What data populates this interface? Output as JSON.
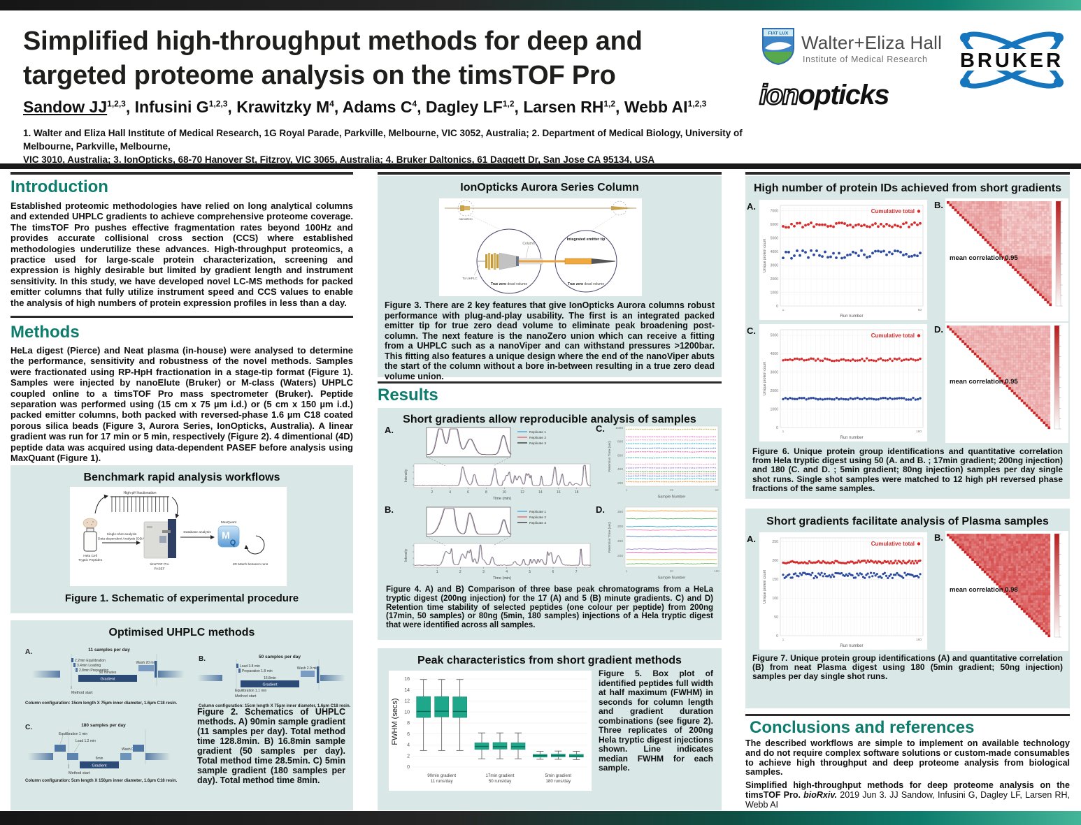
{
  "colors": {
    "accent_teal": "#0e7c6d",
    "panel_bg": "#d9e8e6",
    "bar_dark": "#1a1a1a",
    "red": "#d62b2b",
    "blue": "#2c4b9e",
    "box_teal": "#1fa78c"
  },
  "header": {
    "title_line1": "Simplified high-throughput methods for deep and",
    "title_line2": "targeted proteome analysis on the timsTOF Pro",
    "authors": [
      {
        "name": "Sandow JJ",
        "sup": "1,2,3",
        "underline": true
      },
      {
        "name": "Infusini G",
        "sup": "1,2,3"
      },
      {
        "name": "Krawitzky M",
        "sup": "4"
      },
      {
        "name": "Adams C",
        "sup": "4"
      },
      {
        "name": "Dagley LF",
        "sup": "1,2"
      },
      {
        "name": "Larsen RH",
        "sup": "1,2"
      },
      {
        "name": "Webb AI",
        "sup": "1,2,3"
      }
    ],
    "affiliations_line1": "1. Walter and Eliza Hall Institute of Medical Research, 1G Royal Parade, Parkville, Melbourne, VIC 3052, Australia; 2. Department of Medical Biology, University of Melbourne, Parkville, Melbourne,",
    "affiliations_line2": "VIC 3010, Australia; 3. IonOpticks, 68-70 Hanover St, Fitzroy, VIC 3065, Australia; 4. Bruker Daltonics, 61 Daggett Dr, San Jose CA 95134, USA",
    "logos": {
      "weh_shield": "FIAT LUX",
      "weh_line1": "Walter+Eliza Hall",
      "weh_line2": "Institute of Medical Research",
      "ionopticks_ion": "ion",
      "ionopticks_opticks": "opticks",
      "bruker": "BRUKER"
    }
  },
  "sections": {
    "introduction": {
      "heading": "Introduction",
      "body": "Established proteomic methodologies have relied on long analytical columns and extended UHPLC gradients to achieve comprehensive proteome coverage. The timsTOF Pro pushes effective fragmentation rates beyond 100Hz and provides accurate collisional cross section (CCS) where established methodologies underutilize these advances. High-throughput proteomics, a practice used for large-scale protein characterization, screening and expression is highly desirable but limited by gradient length and instrument sensitivity. In this study, we have developed novel LC-MS methods for packed emitter columns that fully utilize instrument speed and CCS values to enable the analysis of high numbers of protein expression profiles in less than a day."
    },
    "methods": {
      "heading": "Methods",
      "body": "HeLa digest (Pierce) and Neat plasma (in-house) were analysed to determine the performance, sensitivity and robustness of the novel methods. Samples were fractionated using RP-HpH fractionation in a stage-tip format (Figure 1). Samples were injected by nanoElute (Bruker) or M-class (Waters) UHPLC coupled online to a timsTOF Pro mass spectrometer (Bruker). Peptide separation was performed using (15 cm x 75 µm i.d.) or (5 cm x 150 µm i.d.) packed emitter columns, both packed with reversed-phase 1.6 µm C18 coated porous silica beads (Figure 3, Aurora Series, IonOpticks, Australia). A linear gradient was run for 17 min or 5 min, respectively (Figure 2). 4 dimentional (4D) peptide data was acquired using data-dependent PASEF before analysis using MaxQuant (Figure 1)."
    },
    "results_heading": "Results",
    "conclusions": {
      "heading": "Conclusions and references",
      "body": "The described workflows are simple to implement on available technology and do not require complex software solutions or custom-made consumables to achieve high throughput and deep proteome analysis from biological samples.",
      "ref_bold": "Simplified high-throughput methods for deep proteome analysis on the timsTOF Pro. ",
      "ref_italic": "bioRxiv.",
      "ref_rest": " 2019 Jun 3. JJ Sandow, Infusini G, Dagley LF, Larsen RH, Webb AI"
    }
  },
  "figure1": {
    "panel_title": "Benchmark rapid analysis workflows",
    "labels": {
      "fractionation": "High-pH fractionation",
      "sample1": "Hela Cell",
      "sample2": "Tryptic Peptides",
      "analysis1": "Single-shot analysis",
      "analysis2": "Data-dependent Analysis (DDA)",
      "instrument1": "timsTOF Pro",
      "instrument2": "PASEF",
      "db": "Database analysis",
      "mq": "MaxQuant",
      "match": "4D Match between runs"
    },
    "caption": "Figure 1. Schematic of experimental procedure"
  },
  "figure2": {
    "panel_title": "Optimised UHPLC methods",
    "a": {
      "letter": "A.",
      "title": "11 samples per day",
      "labels": [
        "2.2min Equilibration",
        "3.4min Loading",
        "2.8min Preparation",
        "90 minutes",
        "Gradient",
        "Wash 20 min",
        "Method start"
      ],
      "config": "Column configuration: 15cm length X 75µm inner diameter, 1.6µm C18 resin."
    },
    "b": {
      "letter": "B.",
      "title": "50 samples per day",
      "labels": [
        "Load 3.8 min",
        "Preparation 1.8 min",
        "16.8min",
        "Gradient",
        "Wash 2.9 min",
        "Equilibration 1.1 min",
        "Method start"
      ],
      "config": "Column configuration: 15cm length X 75µm inner diameter, 1.6µm C18 resin."
    },
    "c": {
      "letter": "C.",
      "title": "180 samples per day",
      "labels": [
        "Equilibration 1 min",
        "Load 1.2 min",
        "Wash 0.8 min",
        "5min",
        "Gradient",
        "Method start"
      ],
      "config": "Column configuration: 5cm length X 150µm inner diameter, 1.6µm C18 resin."
    },
    "caption": "Figure 2. Schematics of UHPLC methods. A) 90min sample gradient (11 samples per day). Total method time 128.8min. B) 16.8min sample gradient (50 samples per day). Total method time 28.5min. C) 5min sample gradient (180 samples per day). Total method time 8min."
  },
  "figure3": {
    "panel_title": "IonOpticks Aurora Series Column",
    "labels": {
      "nanozero": "nanoZero",
      "column": "Column",
      "emitter": "Integrated emitter tip",
      "uhplc": "To UHPLC",
      "truezero": "True zero",
      "deadvol": " dead volume"
    },
    "caption": "Figure 3. There are 2 key features that give IonOpticks Aurora columns robust performance with plug-and-play usability. The first is an integrated packed emitter tip for true zero dead volume to eliminate peak broadening post-column. The next feature is the nanoZero union which can receive a fitting from a UHPLC such as a nanoViper and can withstand pressures >1200bar. This fitting also features a unique design where the end of the nanoViper abuts the start of the column without a bore in-between resulting in a true zero dead volume union."
  },
  "figure4": {
    "panel_title": "Short gradients allow reproducible analysis of samples",
    "letters": [
      "A.",
      "B.",
      "C.",
      "D."
    ],
    "legend": [
      "Replicate 1",
      "Replicate 2",
      "Replicate 3"
    ],
    "legend_colors": [
      "#4ea7dc",
      "#e2646e",
      "#3a3a3a"
    ],
    "a": {
      "type": "line",
      "xlabel": "Time (min)",
      "ylabel": "Intensity",
      "xticks": [
        2,
        4,
        6,
        8,
        10,
        12,
        14,
        16,
        18
      ],
      "xmax": 19.5
    },
    "b": {
      "type": "line",
      "xlabel": "Time (min)",
      "ylabel": "Intensity",
      "xticks": [
        1,
        2,
        3,
        4,
        5,
        6,
        7
      ],
      "xmax": 7.6
    },
    "c": {
      "type": "dotted-series",
      "xlabel": "Sample Number",
      "ylabel": "Retention Time (sec)",
      "ylim": [
        150,
        1020
      ],
      "yticks": [
        200,
        400,
        600,
        800,
        1000
      ],
      "xticks": [
        "1",
        "25",
        "50"
      ],
      "series": [
        {
          "y": 975,
          "color": "#b9bd54"
        },
        {
          "y": 865,
          "color": "#e377c2"
        },
        {
          "y": 820,
          "color": "#f2a0c5"
        },
        {
          "y": 765,
          "color": "#31b8c4"
        },
        {
          "y": 700,
          "color": "#4f81c2"
        },
        {
          "y": 648,
          "color": "#e06eb0"
        },
        {
          "y": 560,
          "color": "#3fae9a"
        },
        {
          "y": 470,
          "color": "#f0a3c5"
        },
        {
          "y": 415,
          "color": "#9b86d8"
        },
        {
          "y": 360,
          "color": "#57a455"
        },
        {
          "y": 330,
          "color": "#e58b92"
        },
        {
          "y": 298,
          "color": "#5b7fd0"
        },
        {
          "y": 256,
          "color": "#35b5cf"
        },
        {
          "y": 215,
          "color": "#f0a142"
        }
      ]
    },
    "d": {
      "type": "line-series",
      "xlabel": "Sample Number",
      "ylabel": "Retention Time (sec)",
      "ylim": [
        160,
        365
      ],
      "yticks": [
        200,
        250,
        300,
        350
      ],
      "xticks": [
        "1",
        "90",
        "180"
      ],
      "series": [
        {
          "y": 352,
          "color": "#f0a142"
        },
        {
          "y": 326,
          "color": "#56b06a"
        },
        {
          "y": 299,
          "color": "#41b8d8"
        },
        {
          "y": 287,
          "color": "#e584b5"
        },
        {
          "y": 265,
          "color": "#4f81c2"
        },
        {
          "y": 222,
          "color": "#9b86d8"
        },
        {
          "y": 210,
          "color": "#d557a8"
        },
        {
          "y": 186,
          "color": "#cfc04a"
        },
        {
          "y": 172,
          "color": "#6bbb5e"
        }
      ]
    },
    "caption": "Figure 4. A) and B) Comparison of three base peak chromatograms from a HeLa tryptic digest (200ng injection) for the 17 (A) and 5 (B) minute gradients. C) and D) Retention time stability of selected peptides (one colour per peptide) from 200ng (17min, 50 samples) or 80ng (5min, 180 samples) injections of a Hela tryptic digest that were identified across all samples."
  },
  "figure5": {
    "panel_title": "Peak characteristics from short gradient methods",
    "chart": {
      "type": "box",
      "ylabel": "FWHM (secs)",
      "ylim": [
        0,
        16.5
      ],
      "yticks": [
        0,
        2,
        4,
        6,
        8,
        10,
        12,
        14,
        16
      ],
      "box_color": "#1fa78c",
      "groups": [
        {
          "label1": "90min gradient",
          "label2": "11 runs/day",
          "boxes": [
            {
              "lo": 3.0,
              "q1": 9.0,
              "med": 10.1,
              "q3": 12.8,
              "hi": 15.9
            },
            {
              "lo": 3.0,
              "q1": 9.1,
              "med": 10.15,
              "q3": 12.8,
              "hi": 15.9
            },
            {
              "lo": 3.0,
              "q1": 9.0,
              "med": 10.1,
              "q3": 12.75,
              "hi": 15.9
            }
          ]
        },
        {
          "label1": "17min gradient",
          "label2": "50 runs/day",
          "boxes": [
            {
              "lo": 1.5,
              "q1": 3.2,
              "med": 3.75,
              "q3": 4.4,
              "hi": 6.2
            },
            {
              "lo": 1.5,
              "q1": 3.25,
              "med": 3.7,
              "q3": 4.45,
              "hi": 6.2
            },
            {
              "lo": 1.5,
              "q1": 3.2,
              "med": 3.7,
              "q3": 4.4,
              "hi": 6.2
            }
          ]
        },
        {
          "label1": "5min gradient",
          "label2": "180 runs/day",
          "boxes": [
            {
              "lo": 1.4,
              "q1": 1.8,
              "med": 2.05,
              "q3": 2.3,
              "hi": 2.85
            },
            {
              "lo": 1.4,
              "q1": 1.85,
              "med": 2.05,
              "q3": 2.35,
              "hi": 2.9
            },
            {
              "lo": 1.35,
              "q1": 1.8,
              "med": 2.0,
              "q3": 2.3,
              "hi": 2.85
            }
          ]
        }
      ]
    },
    "caption": "Figure 5.  Box plot of identified peptides full width at half maximum (FWHM) in seconds for column length and gradient duration combinations (see figure 2). Three replicates of 200ng Hela tryptic digest injections shown. Line indicates median FWHM for each sample."
  },
  "figure6": {
    "panel_title": "High number of protein IDs achieved from short gradients",
    "a": {
      "type": "scatter",
      "letter": "A.",
      "legend": "Cumulative total",
      "xlabel": "Run number",
      "ylabel": "Unique protein count",
      "yticks": [
        0,
        1000,
        2000,
        3000,
        4000,
        5000,
        6000,
        7000
      ],
      "ymax": 7400,
      "n": 50,
      "red_mean": 5950,
      "red_spread": 180,
      "blue_mean": 3780,
      "blue_spread": 300,
      "x_first": "1",
      "x_last": "50"
    },
    "b": {
      "type": "heatmap",
      "letter": "B.",
      "label": "mean correlation  0.95"
    },
    "c": {
      "type": "scatter",
      "letter": "C.",
      "legend": "Cumulative total",
      "xlabel": "Run number",
      "ylabel": "Unique protein count",
      "yticks": [
        0,
        1000,
        2000,
        3000,
        4000,
        5000
      ],
      "ymax": 5300,
      "n": 60,
      "red_mean": 3680,
      "red_spread": 75,
      "blue_mean": 1560,
      "blue_spread": 50,
      "x_first": "1",
      "x_last": "180"
    },
    "d": {
      "type": "heatmap",
      "letter": "D.",
      "label": "mean correlation  0.95"
    },
    "caption": "Figure 6. Unique protein group identifications and quantitative correlation from Hela tryptic digest using 50 (A. and B. ; 17min gradient; 200ng injection) and 180 (C. and D. ; 5min gradient; 80ng injection) samples per day single shot runs. Single shot samples were matched to 12 high pH reversed phase fractions of the same samples."
  },
  "figure7": {
    "panel_title": "Short gradients facilitate analysis of Plasma samples",
    "a": {
      "type": "scatter",
      "letter": "A.",
      "legend": "Cumulative total",
      "xlabel": "Run number",
      "ylabel": "Unique protein count",
      "yticks": [
        0,
        50,
        100,
        150,
        200,
        250
      ],
      "ymax": 260,
      "n": 90,
      "red_mean": 196,
      "red_spread": 4,
      "blue_mean": 160,
      "blue_spread": 7,
      "x_first": "1",
      "x_last": "180"
    },
    "b": {
      "type": "heatmap",
      "letter": "B.",
      "label": "mean correlation  0.98"
    },
    "caption": "Figure 7. Unique protein group identifications (A) and quantitative correlation (B) from neat Plasma digest using 180 (5min gradient; 50ng injection) samples per day single shot runs."
  }
}
